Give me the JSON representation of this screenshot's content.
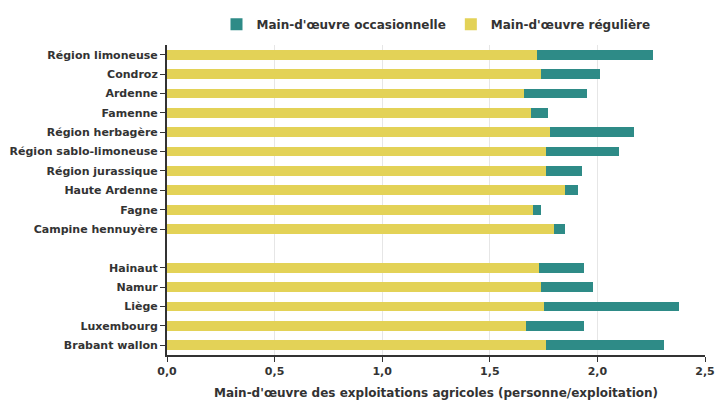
{
  "chart_data": {
    "type": "bar",
    "orientation": "horizontal",
    "stacked": true,
    "grid": true,
    "legend": "top",
    "x_label": "Main-d'œuvre des exploitations agricoles (personne/exploitation)",
    "categories": [
      "Région limoneuse",
      "Condroz",
      "Ardenne",
      "Famenne",
      "Région herbagère",
      "Région sablo-limoneuse",
      "Région jurassique",
      "Haute Ardenne",
      "Fagne",
      "Campine hennuyère",
      null,
      "Hainaut",
      "Namur",
      "Liège",
      "Luxembourg",
      "Brabant wallon"
    ],
    "series": [
      {
        "name": "Main-d'œuvre régulière",
        "color": "#e3d257",
        "values": [
          1.72,
          1.74,
          1.66,
          1.69,
          1.78,
          1.76,
          1.76,
          1.85,
          1.7,
          1.8,
          null,
          1.73,
          1.74,
          1.75,
          1.67,
          1.76
        ]
      },
      {
        "name": "Main-d'œuvre occasionnelle",
        "color": "#2e8b87",
        "values": [
          0.54,
          0.27,
          0.29,
          0.08,
          0.39,
          0.34,
          0.17,
          0.06,
          0.04,
          0.05,
          null,
          0.21,
          0.24,
          0.63,
          0.27,
          0.55
        ]
      }
    ],
    "xlim": [
      0,
      2.5
    ],
    "xticks": [
      {
        "value": 0,
        "label": "0,0"
      },
      {
        "value": 0.5,
        "label": "0,5"
      },
      {
        "value": 1,
        "label": "1,0"
      },
      {
        "value": 1.5,
        "label": "1,5"
      },
      {
        "value": 2,
        "label": "2,0"
      },
      {
        "value": 2.5,
        "label": "2,5"
      }
    ]
  }
}
